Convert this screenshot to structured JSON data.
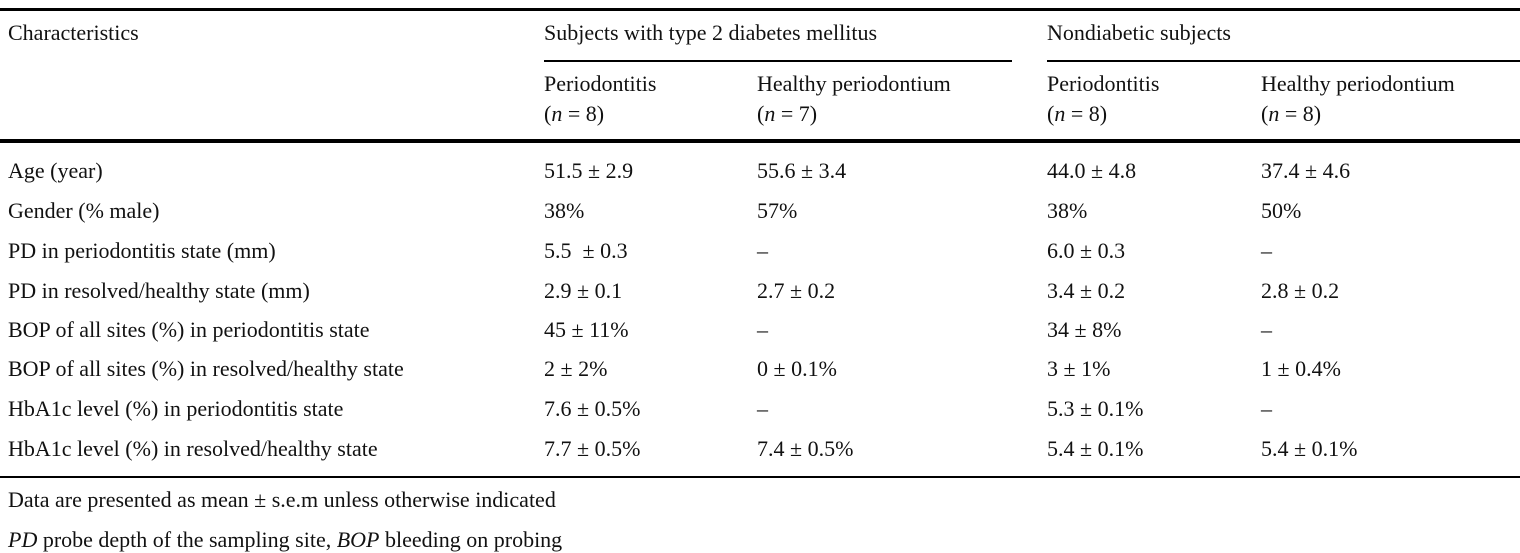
{
  "header": {
    "characteristics": "Characteristics",
    "group_diabetes": "Subjects with type 2 diabetes mellitus",
    "group_nondiabetic": "Nondiabetic subjects",
    "columns": [
      {
        "label": "Periodontitis",
        "n_prefix": "(",
        "n_var": "n",
        "n_value": " = 8)"
      },
      {
        "label": "Healthy periodontium",
        "n_prefix": "(",
        "n_var": "n",
        "n_value": " = 7)"
      },
      {
        "label": "Periodontitis",
        "n_prefix": "(",
        "n_var": "n",
        "n_value": " = 8)"
      },
      {
        "label": "Healthy periodontium",
        "n_prefix": "(",
        "n_var": "n",
        "n_value": " = 8)"
      }
    ]
  },
  "rows": [
    {
      "label": "Age (year)",
      "values": [
        "51.5 ± 2.9",
        "55.6 ± 3.4",
        "44.0 ± 4.8",
        "37.4 ± 4.6"
      ]
    },
    {
      "label": "Gender (% male)",
      "values": [
        "38%",
        "57%",
        "38%",
        "50%"
      ]
    },
    {
      "label": "PD in periodontitis state (mm)",
      "values": [
        "5.5  ± 0.3",
        "–",
        "6.0 ± 0.3",
        "–"
      ]
    },
    {
      "label": "PD in resolved/healthy state (mm)",
      "values": [
        "2.9 ± 0.1",
        "2.7 ± 0.2",
        "3.4 ± 0.2",
        "2.8 ± 0.2"
      ]
    },
    {
      "label": "BOP of all sites (%) in periodontitis state",
      "values": [
        "45 ± 11%",
        "–",
        "34 ± 8%",
        "–"
      ]
    },
    {
      "label": "BOP of all sites (%) in resolved/healthy state",
      "values": [
        "2 ± 2%",
        "0 ± 0.1%",
        "3 ± 1%",
        "1 ± 0.4%"
      ]
    },
    {
      "label": "HbA1c level (%) in periodontitis state",
      "values": [
        "7.6 ± 0.5%",
        "–",
        "5.3 ± 0.1%",
        "–"
      ]
    },
    {
      "label": "HbA1c level (%) in resolved/healthy state",
      "values": [
        "7.7 ± 0.5%",
        "7.4 ± 0.5%",
        "5.4 ± 0.1%",
        "5.4 ± 0.1%"
      ]
    }
  ],
  "footnotes": {
    "note1": "Data are presented as mean ± s.e.m unless otherwise indicated",
    "note2_abbr1": "PD",
    "note2_text1": " probe depth of the sampling site, ",
    "note2_abbr2": "BOP",
    "note2_text2": " bleeding on probing"
  }
}
